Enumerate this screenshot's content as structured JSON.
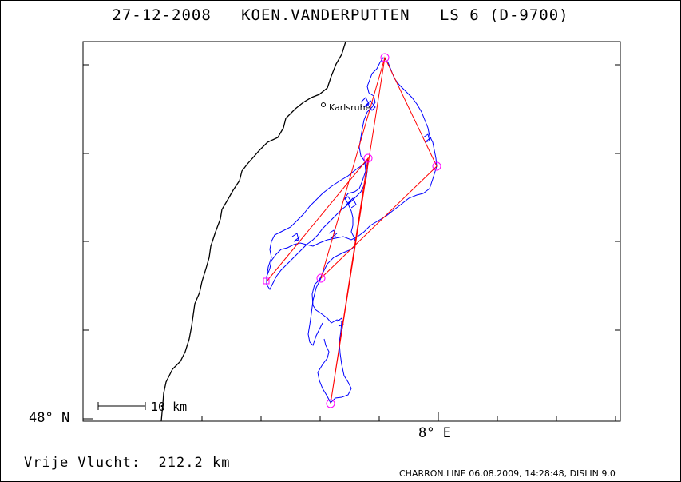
{
  "header": {
    "date": "27-12-2008",
    "pilot": "KOEN.VANDERPUTTEN",
    "glider": "LS 6 (D-9700)"
  },
  "axes": {
    "lat_label": "48° N",
    "lon_label": "8° E"
  },
  "scale_bar": {
    "label": "10 km"
  },
  "city": {
    "name": "Karlsruhe"
  },
  "distance": {
    "label": "Vrije Vlucht:",
    "value": "212.2 km"
  },
  "footer": {
    "text": "CHARRON.LINE 06.08.2009, 14:28:48, DISLIN 9.0"
  },
  "colors": {
    "frame": "#000000",
    "river": "#000000",
    "track": "#0000ff",
    "task": "#ff0000",
    "turnpoint": "#ff00ff"
  }
}
